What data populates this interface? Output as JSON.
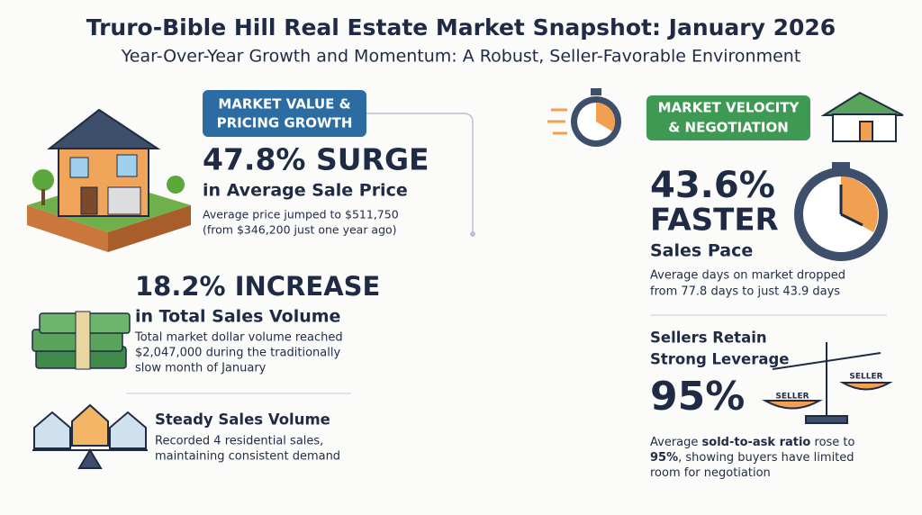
{
  "header": {
    "title": "Truro-Bible Hill Real Estate Market Snapshot: January 2026",
    "subtitle": "Year-Over-Year Growth and Momentum: A Robust, Seller-Favorable Environment"
  },
  "left": {
    "badge": [
      "MARKET VALUE &",
      "PRICING GROWTH"
    ],
    "price": {
      "headline": "47.8% SURGE",
      "subhead": "in Average Sale Price",
      "detail": [
        "Average price jumped to $511,750",
        "(from $346,200 just one year ago)"
      ]
    },
    "volume": {
      "headline": "18.2% INCREASE",
      "subhead": "in Total Sales Volume",
      "detail": [
        "Total market dollar volume reached",
        "$2,047,000 during the traditionally",
        "slow month of January"
      ]
    },
    "sales": {
      "headline": "Steady Sales Volume",
      "detail": [
        "Recorded 4 residential sales,",
        "maintaining consistent demand"
      ]
    }
  },
  "right": {
    "badge": [
      "MARKET VELOCITY",
      "& NEGOTIATION"
    ],
    "pace": {
      "headline": [
        "43.6%",
        "FASTER"
      ],
      "subhead": "Sales Pace",
      "detail": [
        "Average days on market dropped",
        "from 77.8 days to just 43.9 days"
      ]
    },
    "leverage": {
      "headline": [
        "Sellers Retain",
        "Strong Leverage"
      ],
      "figure": "95%",
      "scale_labels": [
        "SELLER",
        "SELLER"
      ],
      "detail": [
        [
          "Average ",
          "sold-to-ask ratio",
          " rose to"
        ],
        [
          "95%",
          ", showing buyers have limited"
        ],
        [
          "room for negotiation"
        ]
      ]
    }
  }
}
